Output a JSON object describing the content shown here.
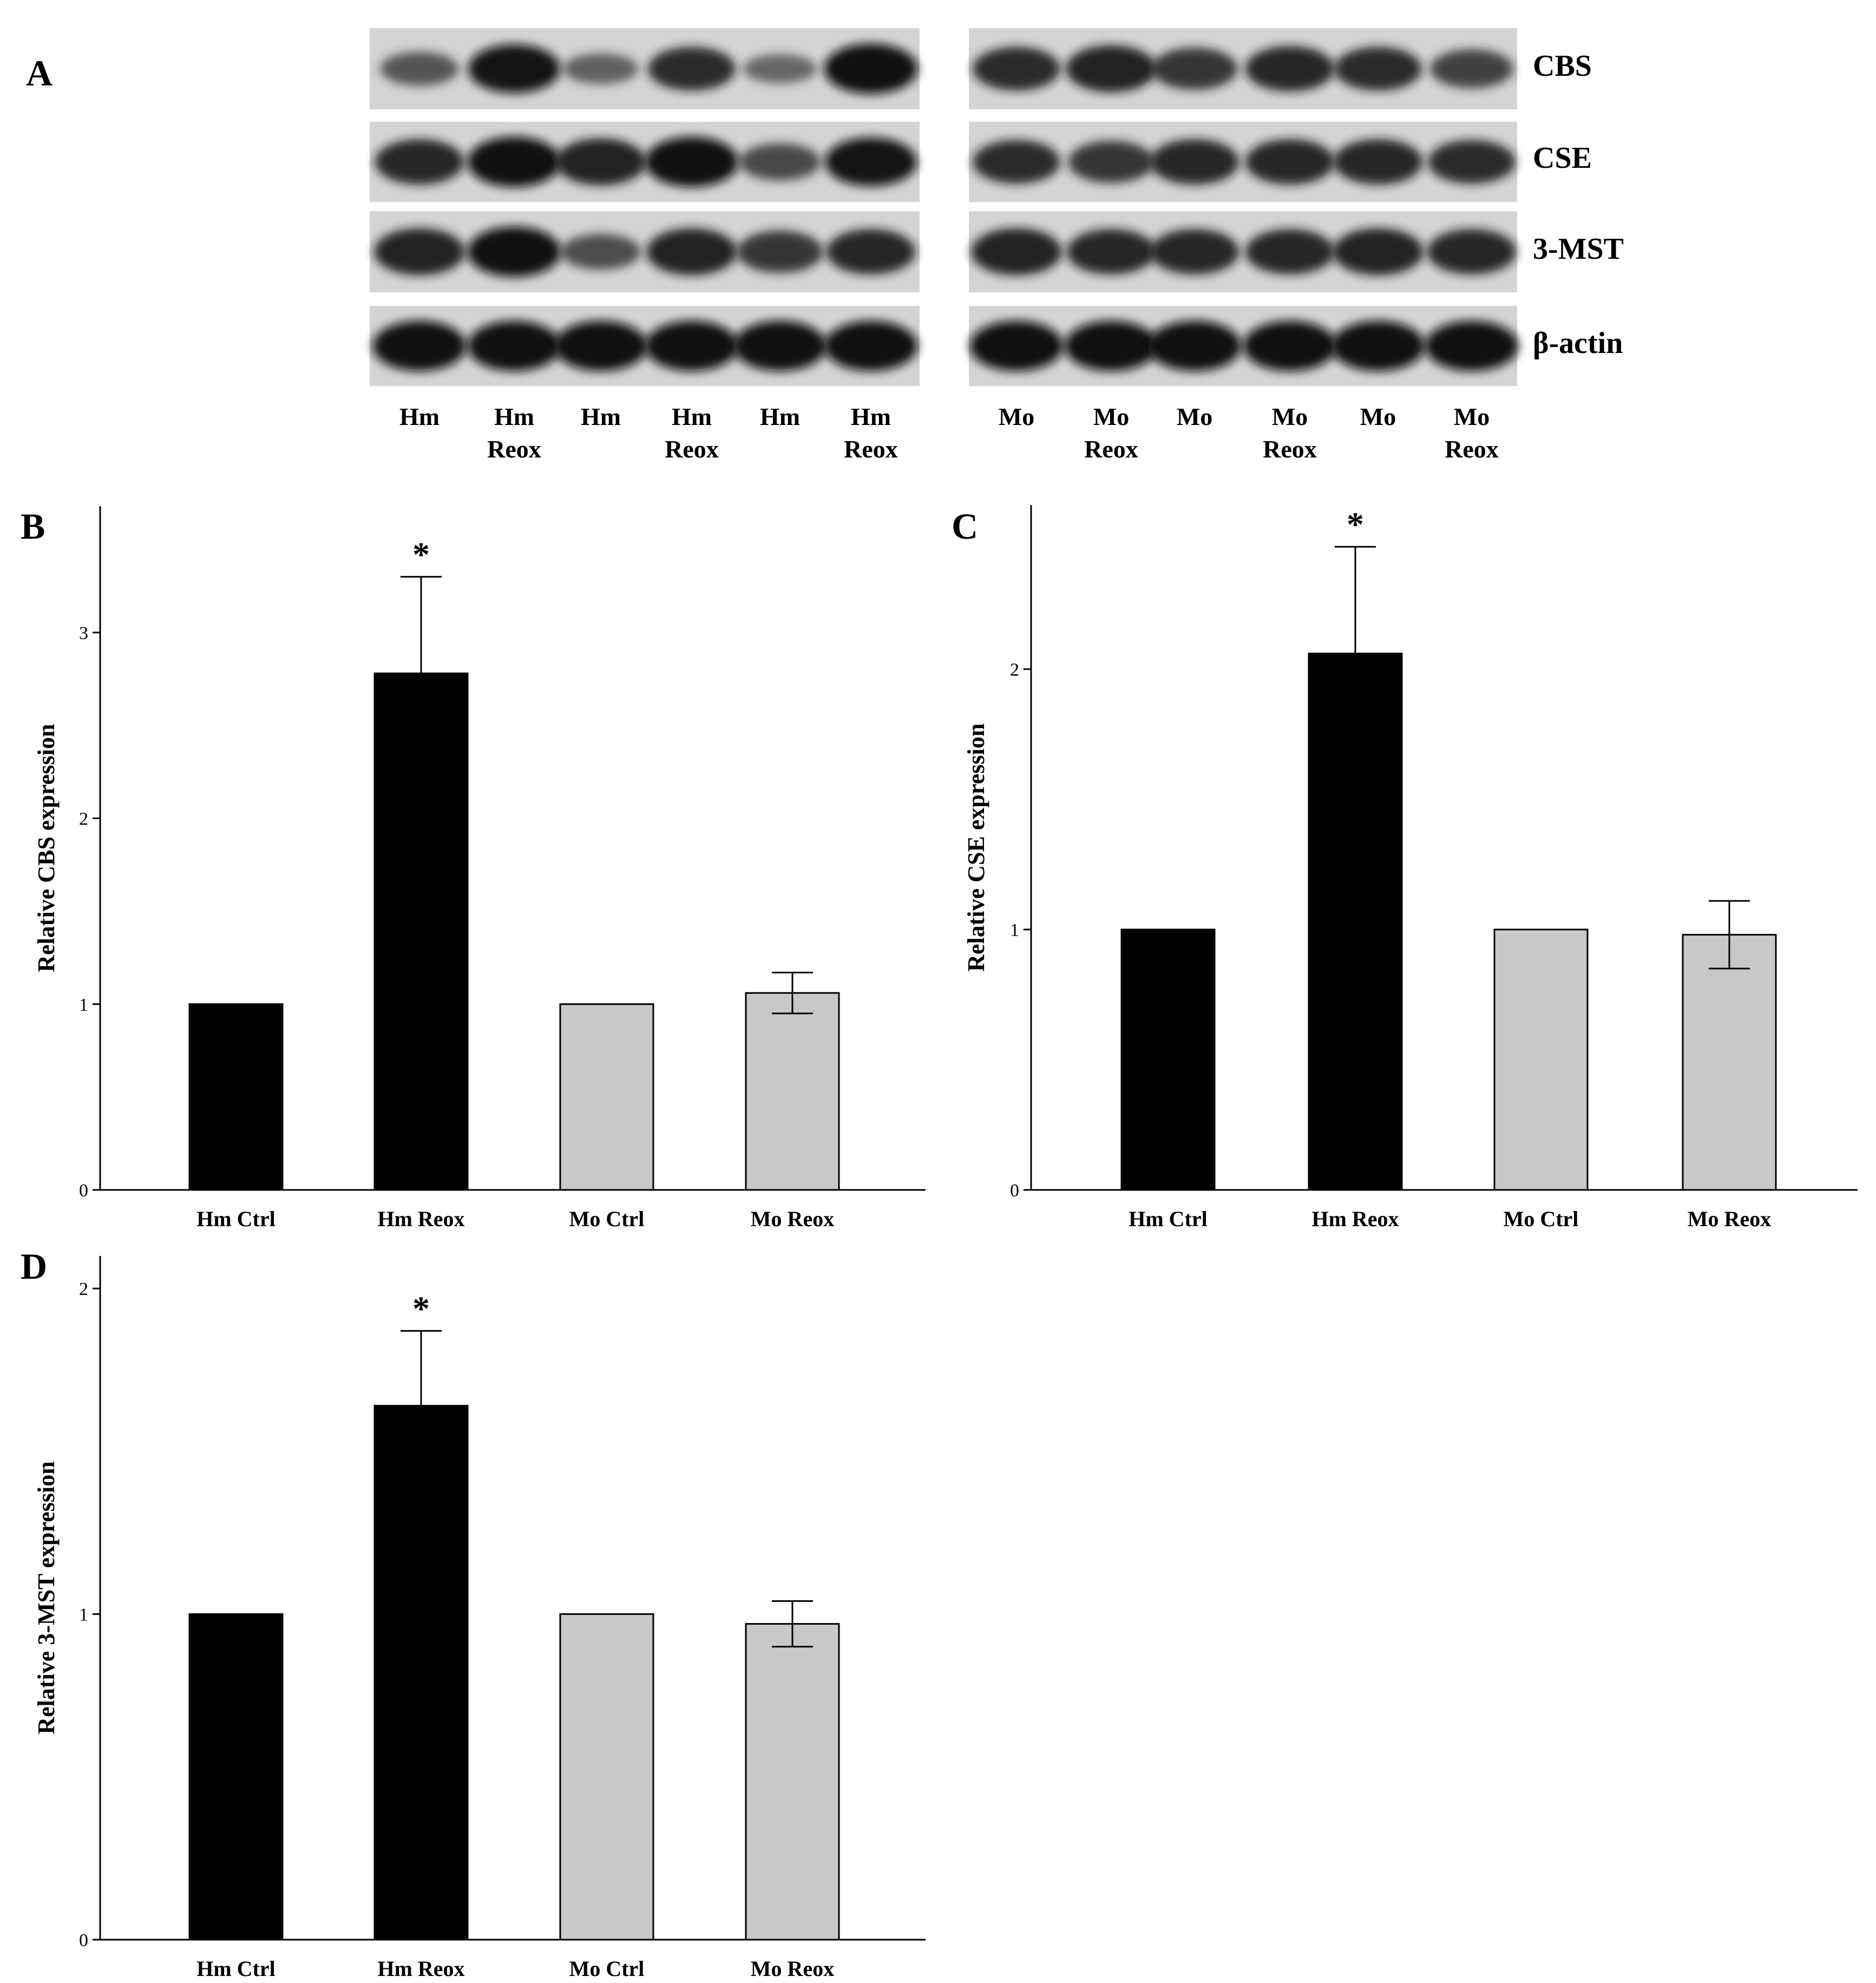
{
  "panel_letters": [
    "A",
    "B",
    "C",
    "D"
  ],
  "blot": {
    "proteins": [
      "CBS",
      "CSE",
      "3-MST",
      "β-actin"
    ],
    "left_lanes": [
      [
        "Hm"
      ],
      [
        "Hm",
        "Reox"
      ],
      [
        "Hm"
      ],
      [
        "Hm",
        "Reox"
      ],
      [
        "Hm"
      ],
      [
        "Hm",
        "Reox"
      ]
    ],
    "right_lanes": [
      [
        "Mo"
      ],
      [
        "Mo",
        "Reox"
      ],
      [
        "Mo"
      ],
      [
        "Mo",
        "Reox"
      ],
      [
        "Mo"
      ],
      [
        "Mo",
        "Reox"
      ]
    ],
    "band_intensity": {
      "left": [
        [
          0.45,
          0.9,
          0.35,
          0.75,
          0.3,
          0.95
        ],
        [
          0.8,
          0.95,
          0.85,
          0.95,
          0.55,
          0.9
        ],
        [
          0.85,
          0.95,
          0.5,
          0.85,
          0.7,
          0.8
        ],
        [
          0.95,
          0.95,
          0.95,
          0.95,
          0.95,
          0.95
        ]
      ],
      "right": [
        [
          0.75,
          0.85,
          0.7,
          0.8,
          0.75,
          0.6
        ],
        [
          0.75,
          0.7,
          0.8,
          0.8,
          0.8,
          0.75
        ],
        [
          0.85,
          0.8,
          0.8,
          0.8,
          0.85,
          0.8
        ],
        [
          0.95,
          0.95,
          0.95,
          0.95,
          0.95,
          0.95
        ]
      ]
    }
  },
  "colors": {
    "hm_bar": "#000000",
    "mo_bar": "#c8c8c8",
    "axis": "#000000"
  },
  "chart_data": [
    {
      "panel": "B",
      "type": "bar",
      "categories": [
        "Hm Ctrl",
        "Hm Reox",
        "Mo Ctrl",
        "Mo Reox"
      ],
      "values": [
        1.0,
        2.78,
        1.0,
        1.06
      ],
      "errors": [
        0,
        0.52,
        0,
        0.11
      ],
      "significance": [
        "",
        "*",
        "",
        ""
      ],
      "ylabel": "Relative CBS expression",
      "xlabel": "",
      "ylim": [
        0,
        3.68
      ],
      "yticks": [
        0,
        1,
        2,
        3
      ],
      "bar_colors": [
        "#000000",
        "#000000",
        "#c8c8c8",
        "#c8c8c8"
      ]
    },
    {
      "panel": "C",
      "type": "bar",
      "categories": [
        "Hm Ctrl",
        "Hm Reox",
        "Mo Ctrl",
        "Mo Reox"
      ],
      "values": [
        1.0,
        2.06,
        1.0,
        0.98
      ],
      "errors": [
        0,
        0.41,
        0,
        0.13
      ],
      "significance": [
        "",
        "*",
        "",
        ""
      ],
      "ylabel": "Relative CSE expression",
      "xlabel": "",
      "ylim": [
        0,
        2.63
      ],
      "yticks": [
        0,
        1,
        2
      ],
      "bar_colors": [
        "#000000",
        "#000000",
        "#c8c8c8",
        "#c8c8c8"
      ]
    },
    {
      "panel": "D",
      "type": "bar",
      "categories": [
        "Hm Ctrl",
        "Hm Reox",
        "Mo Ctrl",
        "Mo Reox"
      ],
      "values": [
        1.0,
        1.64,
        1.0,
        0.97
      ],
      "errors": [
        0,
        0.23,
        0,
        0.07
      ],
      "significance": [
        "",
        "*",
        "",
        ""
      ],
      "ylabel": "Relative 3-MST expression",
      "xlabel": "",
      "ylim": [
        0,
        2.1
      ],
      "yticks": [
        0,
        1,
        2
      ],
      "bar_colors": [
        "#000000",
        "#000000",
        "#c8c8c8",
        "#c8c8c8"
      ]
    }
  ]
}
